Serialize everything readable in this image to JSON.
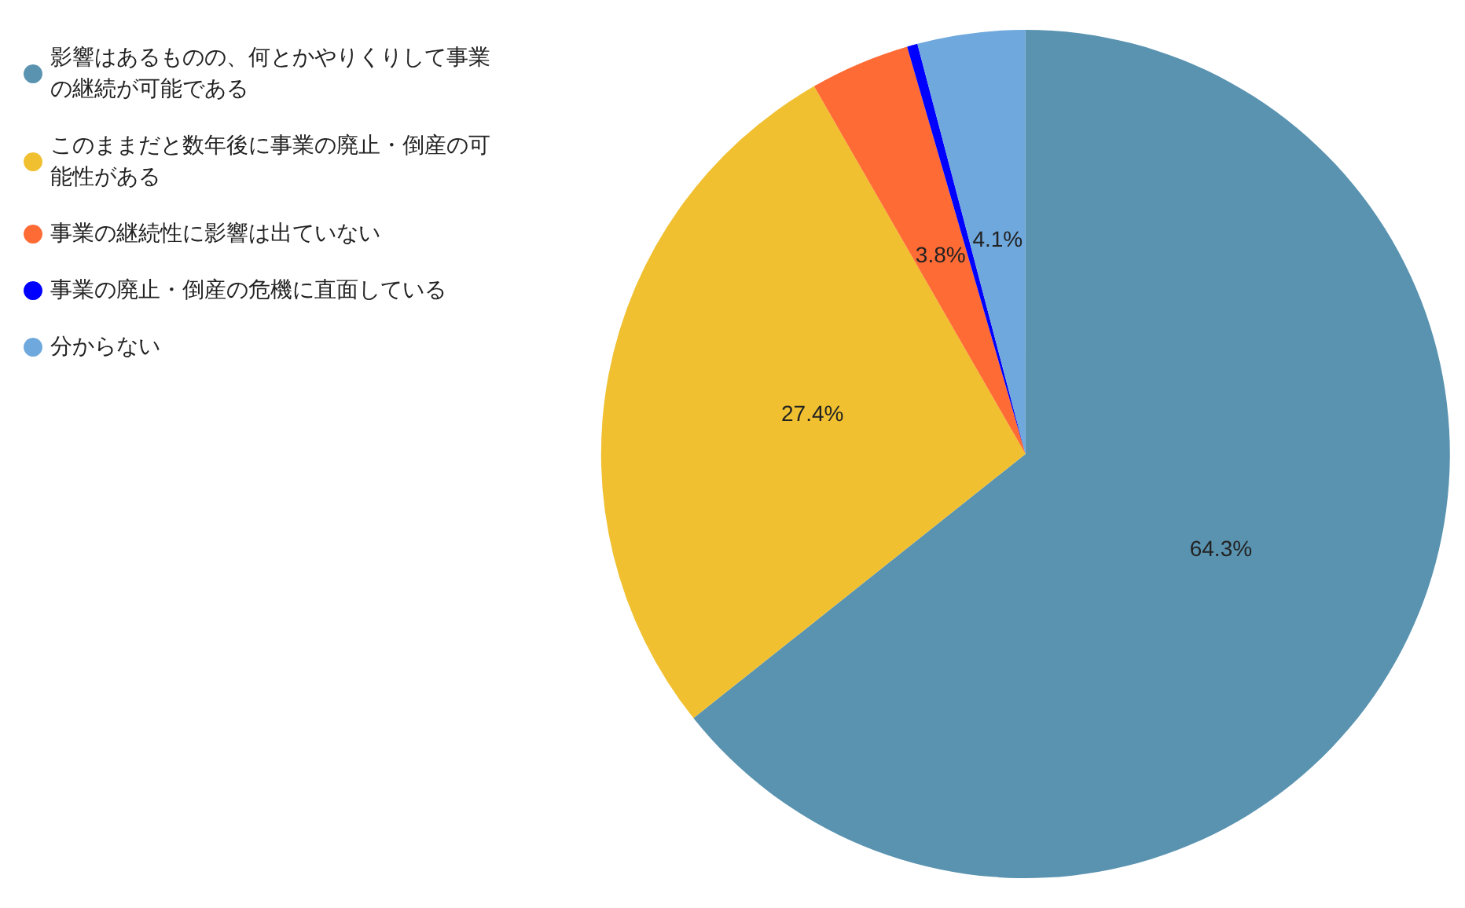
{
  "chart_data": {
    "type": "pie",
    "categories": [
      "影響はあるものの、何とかやりくりして事業の継続が可能である",
      "このままだと数年後に事業の廃止・倒産の可能性がある",
      "事業の継続性に影響は出ていない",
      "事業の廃止・倒産の危機に直面している",
      "分からない"
    ],
    "values": [
      64.3,
      27.4,
      3.8,
      0.4,
      4.1
    ],
    "value_labels": [
      "64.3%",
      "27.4%",
      "3.8%",
      null,
      "4.1%"
    ],
    "colors": [
      "#5a93b0",
      "#f0c030",
      "#ff6b35",
      "#0000ff",
      "#6fa8dc"
    ],
    "legend": "top left"
  }
}
